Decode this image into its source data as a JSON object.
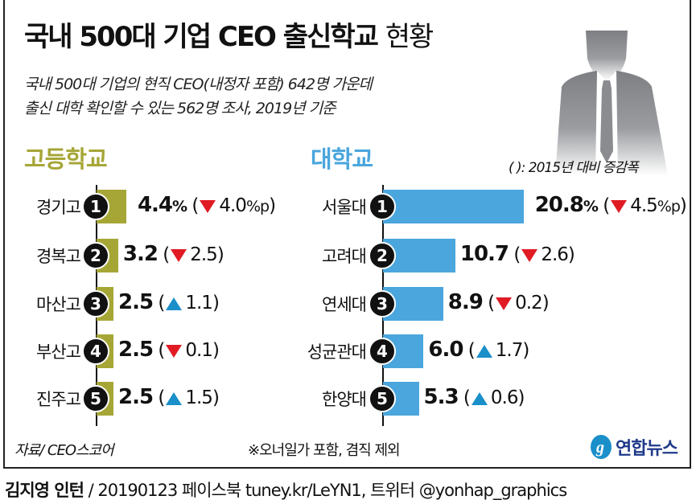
{
  "title_bold": "국내 500대 기업 CEO 출신학교",
  "title_light": "현황",
  "subtitle_lines": [
    "국내 500대 기업의 현직 CEO(내정자 포함) 642명 가운데",
    "출신 대학 확인할 수 있는 562명 조사, 2019년 기준"
  ],
  "legend_note": "( ): 2015년 대비 증감폭",
  "colors": {
    "highschool": "#a6a637",
    "university": "#4aa6dd",
    "down": "#e01b24",
    "up": "#1a8fc9"
  },
  "chart_data": [
    {
      "type": "bar",
      "title": "고등학교",
      "unit": "%",
      "change_unit": "%p",
      "categories": [
        "경기고",
        "경복고",
        "마산고",
        "부산고",
        "진주고"
      ],
      "ranks": [
        "1",
        "2",
        "3",
        "4",
        "5"
      ],
      "values": [
        4.4,
        3.2,
        2.5,
        2.5,
        2.5
      ],
      "value_labels": [
        "4.4",
        "3.2",
        "2.5",
        "2.5",
        "2.5"
      ],
      "changes": [
        -4.0,
        -2.5,
        1.1,
        -0.1,
        1.5
      ],
      "change_labels": [
        "4.0",
        "2.5",
        "1.1",
        "0.1",
        "1.5"
      ]
    },
    {
      "type": "bar",
      "title": "대학교",
      "unit": "%",
      "change_unit": "%p",
      "categories": [
        "서울대",
        "고려대",
        "연세대",
        "성균관대",
        "한양대"
      ],
      "ranks": [
        "1",
        "2",
        "3",
        "4",
        "5"
      ],
      "values": [
        20.8,
        10.7,
        8.9,
        6.0,
        5.3
      ],
      "value_labels": [
        "20.8",
        "10.7",
        "8.9",
        "6.0",
        "5.3"
      ],
      "changes": [
        -4.5,
        -2.6,
        -0.2,
        1.7,
        0.6
      ],
      "change_labels": [
        "4.5",
        "2.6",
        "0.2",
        "1.7",
        "0.6"
      ]
    }
  ],
  "source": "자료/ CEO스코어",
  "footnote": "※오너일가 포함, 겸직 제외",
  "logo_text": "연합뉴스",
  "footer": {
    "author": "김지영 인턴",
    "rest": " / 20190123  페이스북 tuney.kr/LeYN1, 트위터 @yonhap_graphics"
  }
}
